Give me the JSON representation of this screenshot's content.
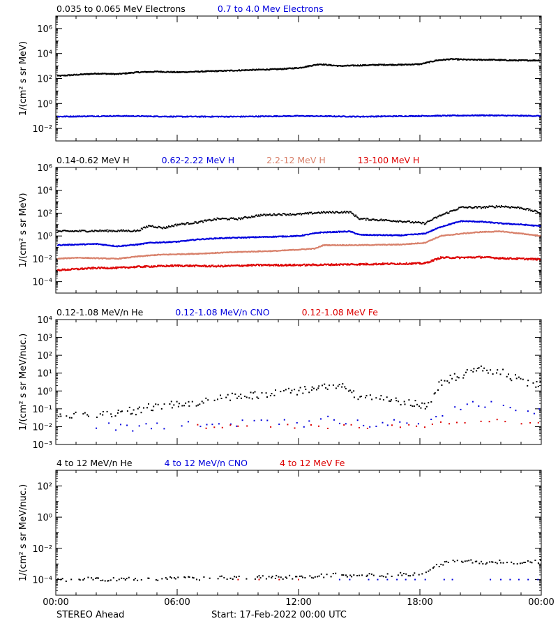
{
  "chart_data": {
    "type": "scatter",
    "x_axis": {
      "range_hours": [
        0,
        24
      ],
      "ticks": [
        0,
        6,
        12,
        18,
        24
      ],
      "tick_labels": [
        "00:00",
        "06:00",
        "12:00",
        "18:00",
        "00:00"
      ]
    },
    "footer_left": "STEREO Ahead",
    "footer_center": "Start: 17-Feb-2022 00:00 UTC",
    "panels": [
      {
        "ylabel": "1/(cm² s sr MeV)",
        "y_scale": "log",
        "ylim_exp": [
          -3,
          7
        ],
        "major_tick_exps": [
          -2,
          0,
          2,
          4,
          6
        ],
        "tick_labels": [
          "10⁻²",
          "10⁰",
          "10²",
          "10⁴",
          "10⁶"
        ],
        "series": [
          {
            "name": "0.035 to 0.065 MeV Electrons",
            "color": "#000000",
            "style": "dots",
            "points": [
              [
                0,
                2.2
              ],
              [
                1,
                2.3
              ],
              [
                2,
                2.4
              ],
              [
                3,
                2.35
              ],
              [
                4,
                2.5
              ],
              [
                5,
                2.55
              ],
              [
                6,
                2.5
              ],
              [
                7,
                2.55
              ],
              [
                8,
                2.6
              ],
              [
                9,
                2.65
              ],
              [
                10,
                2.7
              ],
              [
                11,
                2.75
              ],
              [
                12,
                2.85
              ],
              [
                13,
                3.15
              ],
              [
                14,
                3.0
              ],
              [
                15,
                3.05
              ],
              [
                16,
                3.1
              ],
              [
                17,
                3.1
              ],
              [
                18,
                3.15
              ],
              [
                18.8,
                3.45
              ],
              [
                19.5,
                3.55
              ],
              [
                20.5,
                3.5
              ],
              [
                21.5,
                3.5
              ],
              [
                22.5,
                3.45
              ],
              [
                24,
                3.45
              ]
            ],
            "noise": 0.04,
            "step_min": 2,
            "t_start": 0,
            "t_end": 24
          },
          {
            "name": "0.7 to 4.0 Mev Electrons",
            "color": "#0000dd",
            "style": "dots",
            "points": [
              [
                0,
                -1.05
              ],
              [
                3,
                -1.0
              ],
              [
                6,
                -1.05
              ],
              [
                9,
                -1.05
              ],
              [
                12,
                -1.0
              ],
              [
                15,
                -1.05
              ],
              [
                18,
                -1.0
              ],
              [
                21,
                -0.95
              ],
              [
                24,
                -1.0
              ]
            ],
            "noise": 0.035,
            "step_min": 2,
            "t_start": 0,
            "t_end": 24
          }
        ]
      },
      {
        "ylabel": "1/(cm² s sr MeV)",
        "y_scale": "log",
        "ylim_exp": [
          -5,
          6
        ],
        "major_tick_exps": [
          -4,
          -2,
          0,
          2,
          4,
          6
        ],
        "tick_labels": [
          "10⁻⁴",
          "10⁻²",
          "10⁰",
          "10²",
          "10⁴",
          "10⁶"
        ],
        "series": [
          {
            "name": "0.14-0.62 MeV H",
            "color": "#000000",
            "style": "dots",
            "points": [
              [
                0,
                0.4
              ],
              [
                2,
                0.45
              ],
              [
                4,
                0.45
              ],
              [
                4.6,
                0.9
              ],
              [
                5.3,
                0.7
              ],
              [
                6,
                1.0
              ],
              [
                7,
                1.2
              ],
              [
                8,
                1.5
              ],
              [
                9,
                1.5
              ],
              [
                10,
                1.8
              ],
              [
                11,
                1.9
              ],
              [
                12,
                1.9
              ],
              [
                13,
                2.05
              ],
              [
                14.5,
                2.1
              ],
              [
                15,
                1.5
              ],
              [
                16,
                1.4
              ],
              [
                17,
                1.3
              ],
              [
                18.2,
                1.1
              ],
              [
                19,
                1.8
              ],
              [
                20,
                2.5
              ],
              [
                21,
                2.5
              ],
              [
                22,
                2.6
              ],
              [
                23,
                2.45
              ],
              [
                24,
                2.0
              ]
            ],
            "noise": 0.08,
            "step_min": 3,
            "t_start": 0,
            "t_end": 24
          },
          {
            "name": "0.62-2.22 MeV H",
            "color": "#0000dd",
            "style": "dots",
            "points": [
              [
                0,
                -0.8
              ],
              [
                2,
                -0.7
              ],
              [
                3,
                -0.9
              ],
              [
                4,
                -0.75
              ],
              [
                4.6,
                -0.6
              ],
              [
                6,
                -0.5
              ],
              [
                7,
                -0.3
              ],
              [
                8,
                -0.2
              ],
              [
                10,
                -0.1
              ],
              [
                12,
                0.0
              ],
              [
                13,
                0.3
              ],
              [
                14.5,
                0.4
              ],
              [
                15,
                0.1
              ],
              [
                17,
                0.05
              ],
              [
                18.2,
                0.2
              ],
              [
                19,
                0.8
              ],
              [
                20,
                1.3
              ],
              [
                21,
                1.25
              ],
              [
                22,
                1.1
              ],
              [
                23,
                1.0
              ],
              [
                24,
                0.85
              ]
            ],
            "noise": 0.04,
            "step_min": 2,
            "t_start": 0,
            "t_end": 24
          },
          {
            "name": "2.2-12 MeV H",
            "color": "#d8806a",
            "style": "dots",
            "points": [
              [
                0,
                -2.0
              ],
              [
                1,
                -1.9
              ],
              [
                3,
                -2.0
              ],
              [
                4,
                -1.8
              ],
              [
                5,
                -1.65
              ],
              [
                7,
                -1.55
              ],
              [
                9,
                -1.4
              ],
              [
                11,
                -1.3
              ],
              [
                12.8,
                -1.1
              ],
              [
                13.2,
                -0.8
              ],
              [
                15,
                -0.8
              ],
              [
                17,
                -0.75
              ],
              [
                18.2,
                -0.6
              ],
              [
                19,
                0.0
              ],
              [
                20,
                0.2
              ],
              [
                21,
                0.35
              ],
              [
                22,
                0.4
              ],
              [
                23,
                0.2
              ],
              [
                24,
                0.0
              ]
            ],
            "noise": 0.035,
            "step_min": 2,
            "t_start": 0,
            "t_end": 24
          },
          {
            "name": "13-100 MeV H",
            "color": "#dd0000",
            "style": "dots",
            "points": [
              [
                0,
                -3.0
              ],
              [
                2,
                -2.8
              ],
              [
                3,
                -2.8
              ],
              [
                4,
                -2.7
              ],
              [
                6,
                -2.6
              ],
              [
                8,
                -2.65
              ],
              [
                10,
                -2.55
              ],
              [
                12,
                -2.55
              ],
              [
                14,
                -2.5
              ],
              [
                16,
                -2.45
              ],
              [
                18.2,
                -2.4
              ],
              [
                19,
                -1.9
              ],
              [
                20,
                -1.9
              ],
              [
                21,
                -1.85
              ],
              [
                22,
                -1.95
              ],
              [
                23,
                -2.0
              ],
              [
                24,
                -2.05
              ]
            ],
            "noise": 0.07,
            "step_min": 2,
            "t_start": 0,
            "t_end": 24
          }
        ]
      },
      {
        "ylabel": "1/(cm² s sr MeV/nuc.)",
        "y_scale": "log",
        "ylim_exp": [
          -3,
          4
        ],
        "major_tick_exps": [
          -3,
          -2,
          -1,
          0,
          1,
          2,
          3,
          4
        ],
        "tick_labels": [
          "10⁻³",
          "10⁻²",
          "10⁻¹",
          "10⁰",
          "10¹",
          "10²",
          "10³",
          "10⁴"
        ],
        "series": [
          {
            "name": "0.12-1.08 MeV/n He",
            "color": "#000000",
            "style": "sparse",
            "points": [
              [
                0,
                -1.3
              ],
              [
                2,
                -1.3
              ],
              [
                3,
                -1.2
              ],
              [
                4,
                -1.1
              ],
              [
                5,
                -0.8
              ],
              [
                6,
                -0.8
              ],
              [
                7,
                -0.7
              ],
              [
                8,
                -0.4
              ],
              [
                9,
                -0.3
              ],
              [
                10,
                -0.2
              ],
              [
                11,
                -0.1
              ],
              [
                12,
                0.0
              ],
              [
                13,
                0.25
              ],
              [
                14,
                0.3
              ],
              [
                15,
                -0.3
              ],
              [
                17,
                -0.6
              ],
              [
                18.3,
                -0.8
              ],
              [
                19,
                0.5
              ],
              [
                20,
                0.9
              ],
              [
                21,
                1.2
              ],
              [
                22,
                1.1
              ],
              [
                23,
                0.5
              ],
              [
                24,
                0.4
              ]
            ],
            "noise": 0.22,
            "step_min": 5,
            "t_start": 0,
            "t_end": 24
          },
          {
            "name": "0.12-1.08 MeV/n CNO",
            "color": "#0000dd",
            "style": "sparse",
            "points": [
              [
                0,
                -2.0
              ],
              [
                4,
                -2.0
              ],
              [
                8,
                -1.9
              ],
              [
                12,
                -1.8
              ],
              [
                14,
                -1.6
              ],
              [
                16,
                -1.9
              ],
              [
                18.5,
                -1.7
              ],
              [
                20,
                -0.8
              ],
              [
                21.5,
                -0.7
              ],
              [
                23,
                -1.0
              ],
              [
                24,
                -1.2
              ]
            ],
            "noise": 0.25,
            "step_min": 18,
            "t_start": 2,
            "t_end": 24
          },
          {
            "name": "0.12-1.08 MeV Fe",
            "color": "#dd0000",
            "style": "sparse",
            "points": [
              [
                0,
                -2.0
              ],
              [
                8,
                -2.0
              ],
              [
                12,
                -2.0
              ],
              [
                16,
                -2.0
              ],
              [
                18.5,
                -1.9
              ],
              [
                20,
                -1.7
              ],
              [
                21.5,
                -1.6
              ],
              [
                23,
                -1.8
              ],
              [
                24,
                -1.8
              ]
            ],
            "noise": 0.12,
            "step_min": 24,
            "t_start": 7,
            "t_end": 24
          }
        ]
      },
      {
        "ylabel": "1/(cm² s sr MeV/nuc.)",
        "y_scale": "log",
        "ylim_exp": [
          -5,
          3
        ],
        "major_tick_exps": [
          -4,
          -2,
          0,
          2
        ],
        "tick_labels": [
          "10⁻⁴",
          "10⁻²",
          "10⁰",
          "10²"
        ],
        "series": [
          {
            "name": "4 to 12 MeV/n He",
            "color": "#000000",
            "style": "sparse",
            "points": [
              [
                0,
                -4.0
              ],
              [
                4,
                -3.95
              ],
              [
                8,
                -3.9
              ],
              [
                12,
                -3.85
              ],
              [
                14,
                -3.7
              ],
              [
                16,
                -3.75
              ],
              [
                18,
                -3.6
              ],
              [
                19,
                -3.0
              ],
              [
                20,
                -2.8
              ],
              [
                21,
                -2.9
              ],
              [
                22,
                -2.85
              ],
              [
                23,
                -2.9
              ],
              [
                24,
                -2.85
              ]
            ],
            "noise": 0.12,
            "step_min": 6,
            "t_start": 0,
            "t_end": 24
          },
          {
            "name": "4 to 12 MeV/n CNO",
            "color": "#0000dd",
            "style": "sparse",
            "points": [
              [
                0,
                -4.0
              ],
              [
                12,
                -4.0
              ],
              [
                18,
                -4.0
              ],
              [
                20,
                -4.0
              ],
              [
                22,
                -4.0
              ],
              [
                24,
                -4.0
              ]
            ],
            "noise": 0.0,
            "step_min": 28,
            "t_start": 14,
            "t_end": 24
          },
          {
            "name": "4 to 12 MeV Fe",
            "color": "#dd0000",
            "style": "sparse",
            "points": [
              [
                0,
                -4.0
              ],
              [
                24,
                -4.0
              ]
            ],
            "noise": 0.0,
            "step_min": 60,
            "t_start": 9,
            "t_end": 12
          }
        ]
      }
    ]
  }
}
